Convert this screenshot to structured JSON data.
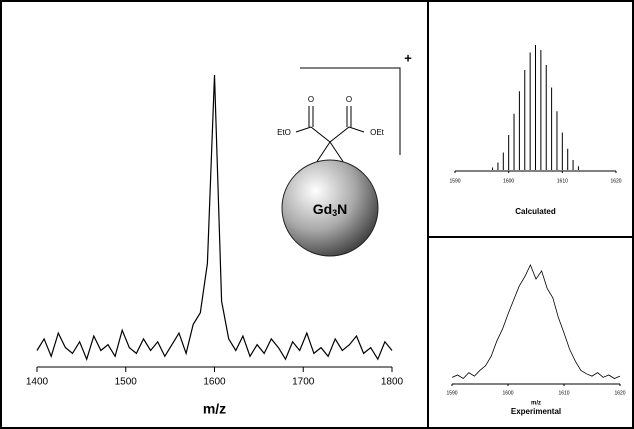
{
  "chart_data": [
    {
      "type": "line",
      "xlabel": "m/z",
      "color": "#000000",
      "x": [
        1400,
        1408,
        1416,
        1424,
        1432,
        1440,
        1448,
        1456,
        1464,
        1472,
        1480,
        1488,
        1496,
        1504,
        1512,
        1520,
        1528,
        1536,
        1544,
        1552,
        1560,
        1568,
        1576,
        1584,
        1592,
        1600,
        1608,
        1616,
        1624,
        1632,
        1640,
        1648,
        1656,
        1664,
        1672,
        1680,
        1688,
        1696,
        1704,
        1712,
        1720,
        1728,
        1736,
        1744,
        1752,
        1760,
        1768,
        1776,
        1784,
        1792,
        1800
      ],
      "values": [
        5,
        9,
        3,
        11,
        6,
        4,
        8,
        2,
        10,
        5,
        7,
        3,
        12,
        6,
        4,
        9,
        5,
        8,
        3,
        7,
        11,
        4,
        14,
        18,
        35,
        100,
        22,
        9,
        5,
        10,
        3,
        7,
        4,
        9,
        6,
        2,
        8,
        5,
        11,
        4,
        6,
        3,
        9,
        5,
        7,
        10,
        4,
        6,
        2,
        8,
        5
      ],
      "xlim": [
        1400,
        1800
      ],
      "xticks": [
        1400,
        1500,
        1600,
        1700,
        1800
      ],
      "ylim": [
        0,
        100
      ]
    },
    {
      "type": "stem",
      "title": "Calculated",
      "color": "#000000",
      "x": [
        1597,
        1598,
        1599,
        1600,
        1601,
        1602,
        1603,
        1604,
        1605,
        1606,
        1607,
        1608,
        1609,
        1610,
        1611,
        1612,
        1613
      ],
      "values": [
        2,
        6,
        14,
        28,
        45,
        63,
        80,
        94,
        100,
        96,
        84,
        66,
        47,
        30,
        17,
        8,
        3
      ],
      "xlim": [
        1590,
        1620
      ],
      "xticks": [
        1590,
        1600,
        1610,
        1620
      ],
      "ylim": [
        0,
        100
      ]
    },
    {
      "type": "line",
      "xlabel": "m/z",
      "title": "Experimental",
      "color": "#000000",
      "x": [
        1590,
        1591,
        1592,
        1593,
        1594,
        1595,
        1596,
        1597,
        1598,
        1599,
        1600,
        1601,
        1602,
        1603,
        1604,
        1605,
        1606,
        1607,
        1608,
        1609,
        1610,
        1611,
        1612,
        1613,
        1614,
        1615,
        1616,
        1617,
        1618,
        1619,
        1620
      ],
      "values": [
        4,
        6,
        3,
        8,
        5,
        10,
        14,
        22,
        35,
        45,
        58,
        70,
        82,
        90,
        100,
        88,
        95,
        80,
        72,
        55,
        42,
        28,
        18,
        10,
        7,
        5,
        8,
        4,
        6,
        3,
        5
      ],
      "xlim": [
        1590,
        1620
      ],
      "xticks": [
        1590,
        1600,
        1610,
        1620
      ],
      "ylim": [
        0,
        100
      ]
    }
  ],
  "molecule": {
    "oxygens": [
      "O",
      "O"
    ],
    "left_group": "EtO",
    "right_group": "OEt",
    "core": "Gd",
    "core_subscript": "3",
    "core_suffix": "N",
    "charge": "+"
  }
}
